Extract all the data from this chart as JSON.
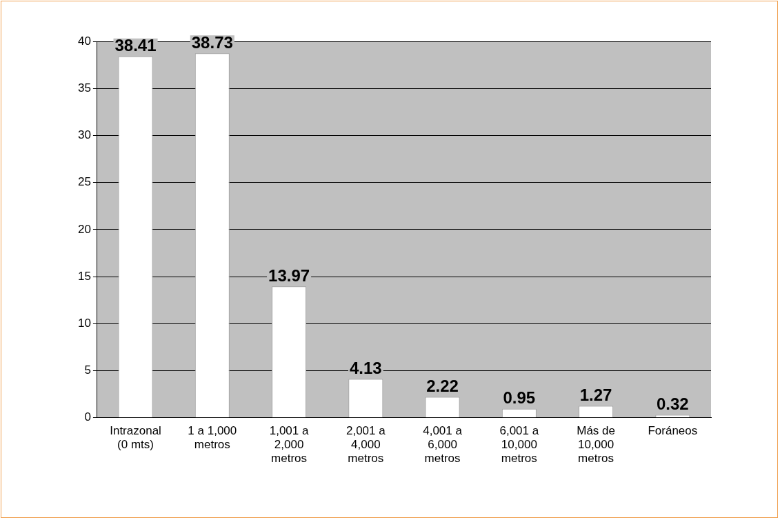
{
  "chart_data": {
    "type": "bar",
    "categories": [
      "Intrazonal (0 mts)",
      "1 a 1,000 metros",
      "1,001 a 2,000 metros",
      "2,001 a 4,000 metros",
      "4,001 a 6,000 metros",
      "6,001 a 10,000 metros",
      "Más de 10,000 metros",
      "Foráneos"
    ],
    "values": [
      38.41,
      38.73,
      13.97,
      4.13,
      2.22,
      0.95,
      1.27,
      0.32
    ],
    "color": "#ffffff",
    "ylim": [
      0,
      40
    ],
    "yticks": [
      0,
      5,
      10,
      15,
      20,
      25,
      30,
      35,
      40
    ],
    "grid": "y",
    "legend": false,
    "data_labels": true
  }
}
